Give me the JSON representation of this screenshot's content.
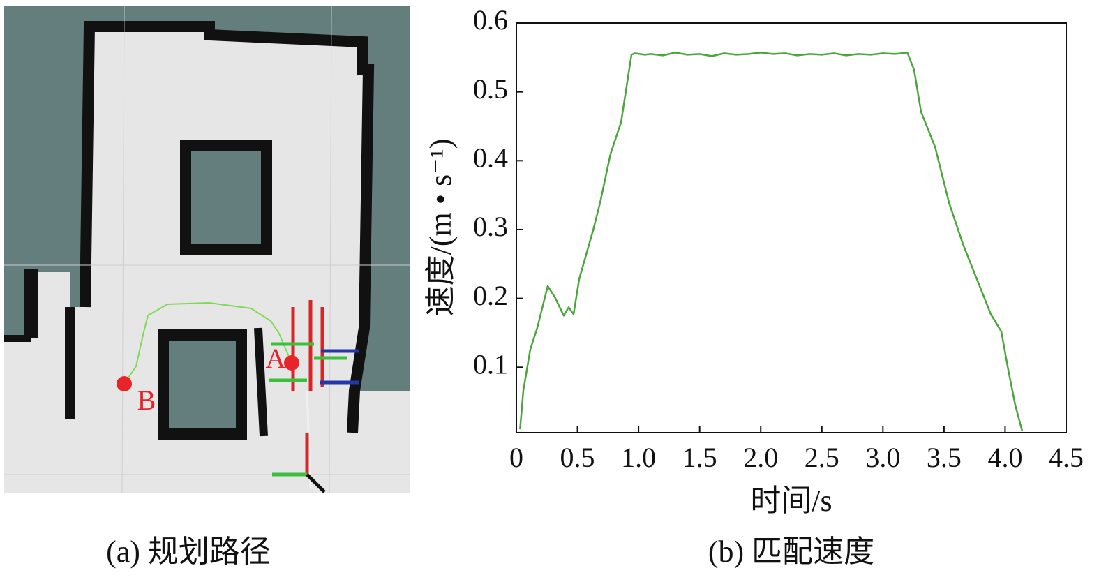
{
  "map": {
    "caption": "(a) 规划路径",
    "point_a": "A",
    "point_b": "B"
  },
  "chart_data": {
    "type": "line",
    "caption": "(b) 匹配速度",
    "xlabel": "时间/s",
    "ylabel": "速度/(m • s⁻¹)",
    "x": [
      0.03,
      0.057,
      0.114,
      0.171,
      0.257,
      0.314,
      0.388,
      0.428,
      0.468,
      0.514,
      0.628,
      0.685,
      0.771,
      0.857,
      0.914,
      0.942,
      0.971,
      1.05,
      1.1,
      1.2,
      1.3,
      1.4,
      1.5,
      1.6,
      1.7,
      1.8,
      1.9,
      2.0,
      2.1,
      2.2,
      2.3,
      2.4,
      2.5,
      2.6,
      2.7,
      2.8,
      2.9,
      3.0,
      3.1,
      3.2,
      3.255,
      3.312,
      3.427,
      3.541,
      3.655,
      3.769,
      3.883,
      3.969,
      4.026,
      4.083,
      4.14
    ],
    "values": [
      0.01,
      0.066,
      0.126,
      0.157,
      0.218,
      0.202,
      0.175,
      0.187,
      0.177,
      0.228,
      0.299,
      0.339,
      0.41,
      0.456,
      0.522,
      0.554,
      0.556,
      0.554,
      0.555,
      0.553,
      0.557,
      0.554,
      0.555,
      0.552,
      0.556,
      0.554,
      0.555,
      0.557,
      0.555,
      0.556,
      0.553,
      0.555,
      0.554,
      0.556,
      0.553,
      0.555,
      0.554,
      0.556,
      0.555,
      0.557,
      0.532,
      0.471,
      0.42,
      0.339,
      0.279,
      0.228,
      0.177,
      0.152,
      0.096,
      0.045,
      0.007
    ],
    "color": "#4aa63c",
    "xlim": [
      0,
      4.5
    ],
    "xticks": [
      0,
      0.5,
      {
        "value": 1,
        "label": "1.0"
      },
      1.5,
      {
        "value": 2,
        "label": "2.0"
      },
      2.5,
      {
        "value": 3,
        "label": "3.0"
      },
      3.5,
      {
        "value": 4,
        "label": "4.0"
      },
      4.5
    ],
    "ylim": [
      0.005,
      0.6
    ],
    "yticks": [
      0.1,
      0.2,
      0.3,
      0.4,
      0.5,
      0.6
    ]
  }
}
